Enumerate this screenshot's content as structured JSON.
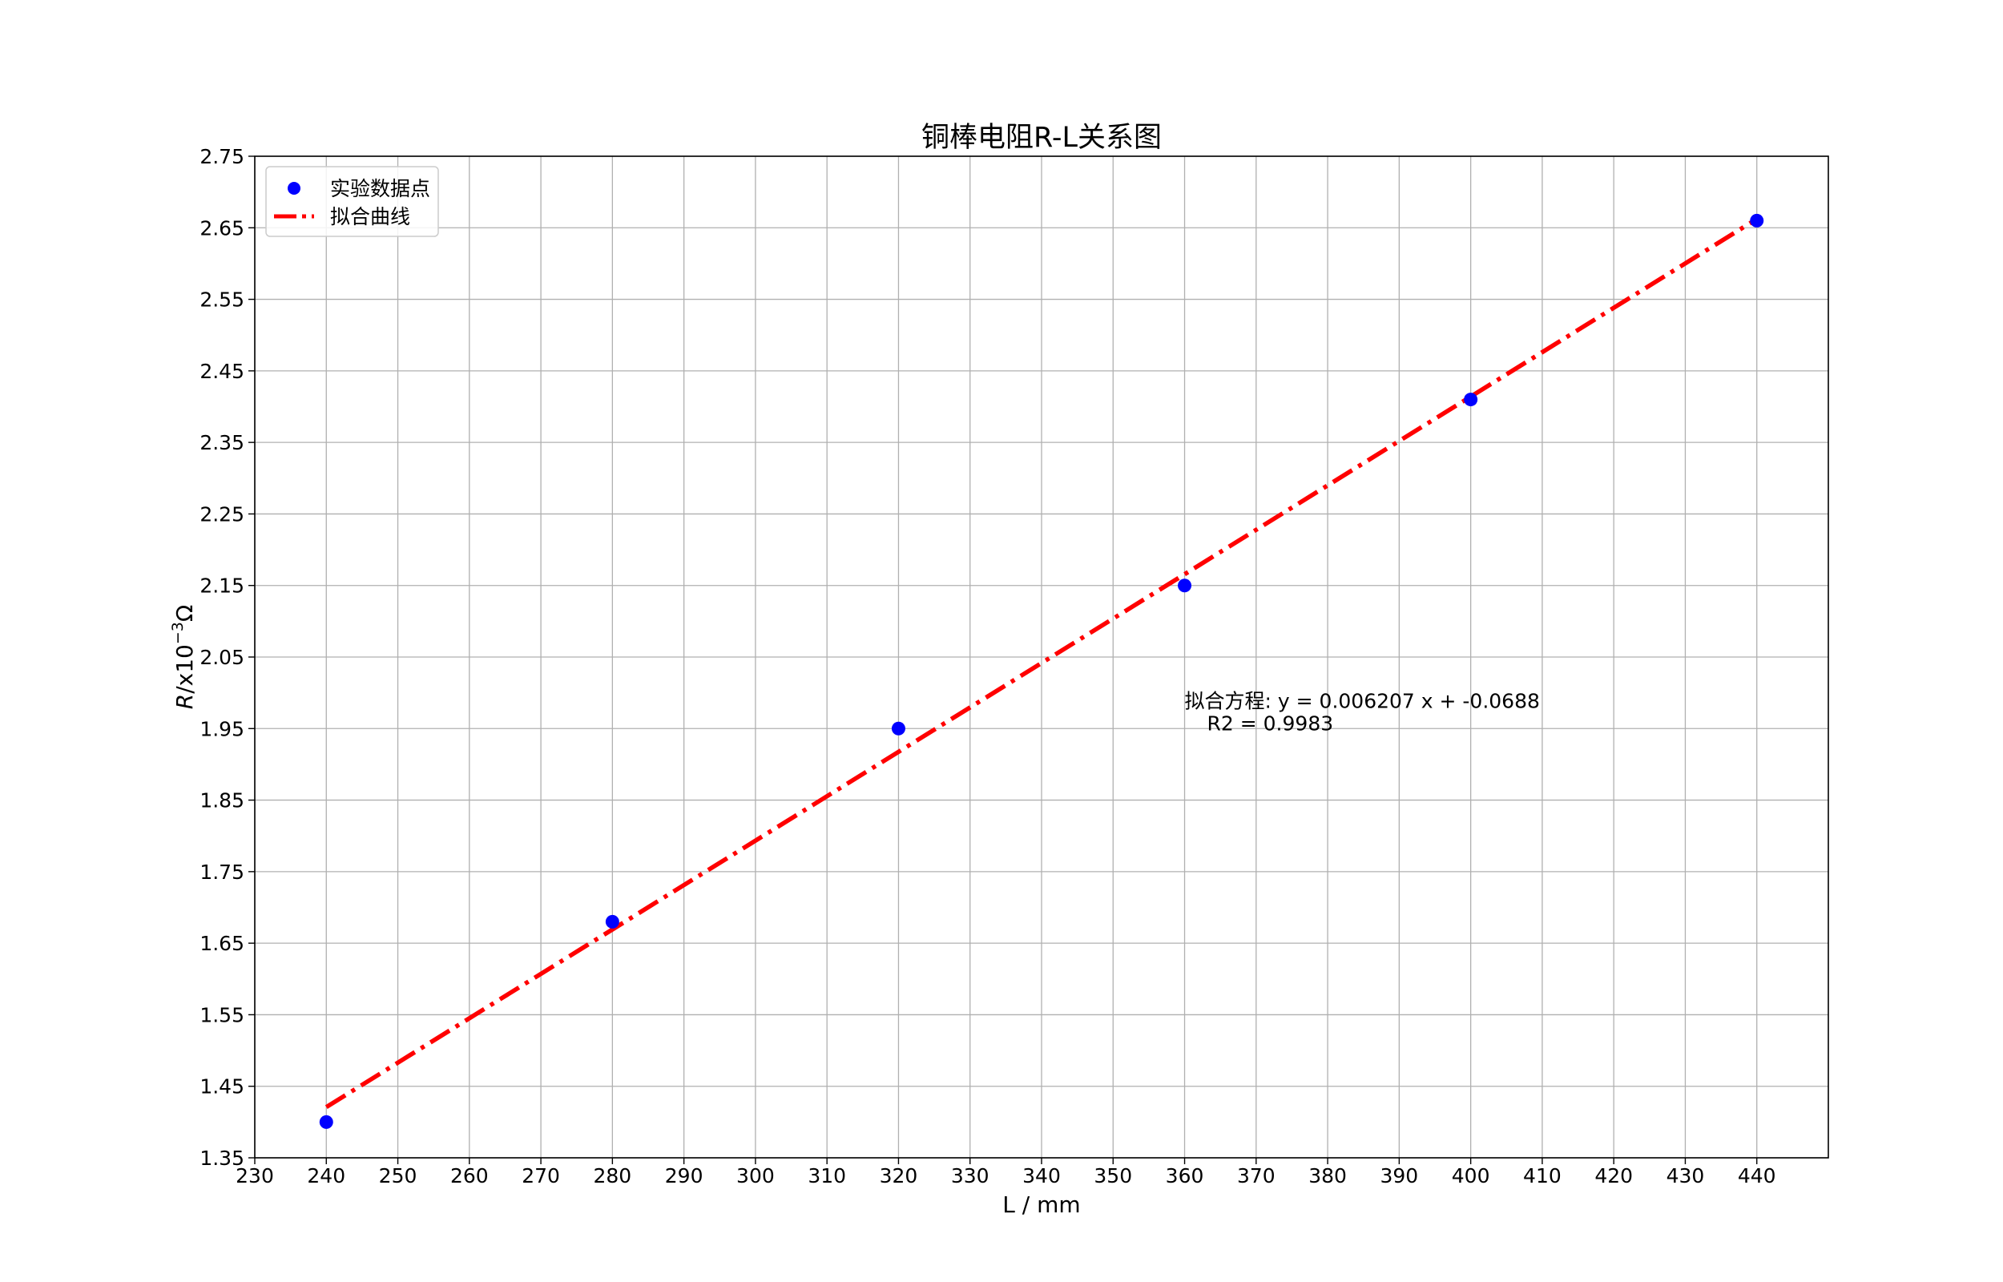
{
  "chart_data": {
    "type": "scatter",
    "title": "铜棒电阻R-L关系图",
    "xlabel": "L / mm",
    "ylabel": "R/x10^-3Ω",
    "ylabel_parts": {
      "var": "R",
      "slash_x": "/x10",
      "exp": "−3",
      "unit": "Ω"
    },
    "xlim": [
      230,
      450
    ],
    "ylim": [
      1.35,
      2.75
    ],
    "xticks": [
      230,
      240,
      250,
      260,
      270,
      280,
      290,
      300,
      310,
      320,
      330,
      340,
      350,
      360,
      370,
      380,
      390,
      400,
      410,
      420,
      430,
      440
    ],
    "yticks": [
      "1.35",
      "1.45",
      "1.55",
      "1.65",
      "1.75",
      "1.85",
      "1.95",
      "2.05",
      "2.15",
      "2.25",
      "2.35",
      "2.45",
      "2.55",
      "2.65",
      "2.75"
    ],
    "grid": true,
    "legend_position": "upper-left",
    "series": [
      {
        "name": "实验数据点",
        "kind": "scatter",
        "color": "#0000ff",
        "x": [
          240,
          280,
          320,
          360,
          400,
          440
        ],
        "y": [
          1.4,
          1.68,
          1.95,
          2.15,
          2.41,
          2.66
        ]
      },
      {
        "name": "拟合曲线",
        "kind": "line",
        "style": "dash-dot",
        "color": "#ff0000",
        "x": [
          240,
          440
        ],
        "y": [
          1.4209,
          2.6623
        ]
      }
    ],
    "annotation": {
      "line1": "拟合方程: y = 0.006207 x + -0.0688",
      "line2": "R2 = 0.9983",
      "x": 360,
      "y": 1.95
    }
  }
}
